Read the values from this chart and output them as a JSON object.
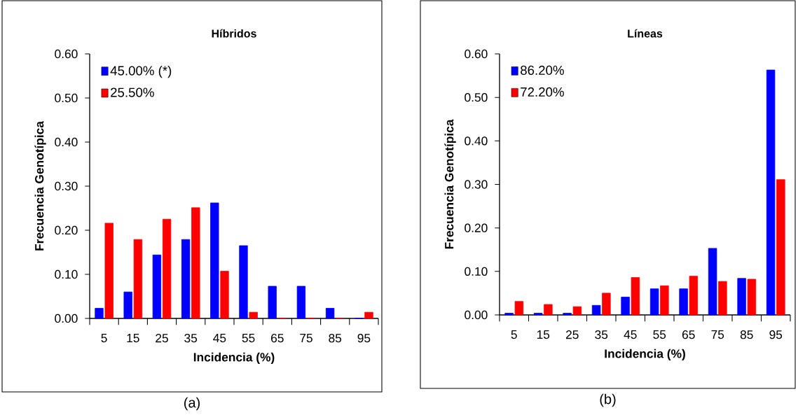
{
  "chart_data": [
    {
      "type": "bar",
      "title": "Híbridos",
      "xlabel": "Incidencia (%)",
      "ylabel": "Frecuencia Genotípica",
      "categories": [
        "5",
        "15",
        "25",
        "35",
        "45",
        "55",
        "65",
        "75",
        "85",
        "95"
      ],
      "series": [
        {
          "name": "45.00% (*)",
          "color": "#0000ff",
          "values": [
            0.023,
            0.06,
            0.144,
            0.179,
            0.262,
            0.165,
            0.073,
            0.073,
            0.023,
            0
          ]
        },
        {
          "name": "25.50%",
          "color": "#ff0000",
          "values": [
            0.216,
            0.179,
            0.225,
            0.251,
            0.107,
            0.014,
            0,
            0,
            0,
            0.014
          ]
        }
      ],
      "ylim": [
        0,
        0.6
      ],
      "yticks": [
        {
          "value": 0,
          "label": "0.00"
        },
        {
          "value": 0.1,
          "label": "0.10"
        },
        {
          "value": 0.2,
          "label": "0.20"
        },
        {
          "value": 0.3,
          "label": "0.30"
        },
        {
          "value": 0.4,
          "label": "0.40"
        },
        {
          "value": 0.5,
          "label": "0.50"
        },
        {
          "value": 0.6,
          "label": "0.60"
        }
      ],
      "legend": "top left",
      "grid": false,
      "annotations": [
        "(a)"
      ]
    },
    {
      "type": "bar",
      "title": "Líneas",
      "xlabel": "Incidencia (%)",
      "ylabel": "Frecuencia Genotípica",
      "categories": [
        "5",
        "15",
        "25",
        "35",
        "45",
        "55",
        "65",
        "75",
        "85",
        "95"
      ],
      "series": [
        {
          "name": "86.20%",
          "color": "#0000ff",
          "values": [
            0.004,
            0.004,
            0.004,
            0.022,
            0.041,
            0.06,
            0.06,
            0.153,
            0.084,
            0.563
          ]
        },
        {
          "name": "72.20%",
          "color": "#ff0000",
          "values": [
            0.031,
            0.024,
            0.019,
            0.05,
            0.086,
            0.067,
            0.089,
            0.077,
            0.082,
            0.311
          ]
        }
      ],
      "ylim": [
        0,
        0.6
      ],
      "yticks": [
        {
          "value": 0,
          "label": "0.00"
        },
        {
          "value": 0.1,
          "label": "0.10"
        },
        {
          "value": 0.2,
          "label": "0.20"
        },
        {
          "value": 0.3,
          "label": "0.30"
        },
        {
          "value": 0.4,
          "label": "0.40"
        },
        {
          "value": 0.5,
          "label": "0.50"
        },
        {
          "value": 0.6,
          "label": "0.60"
        }
      ],
      "legend": "top left",
      "grid": false,
      "annotations": [
        "(b)"
      ]
    }
  ]
}
